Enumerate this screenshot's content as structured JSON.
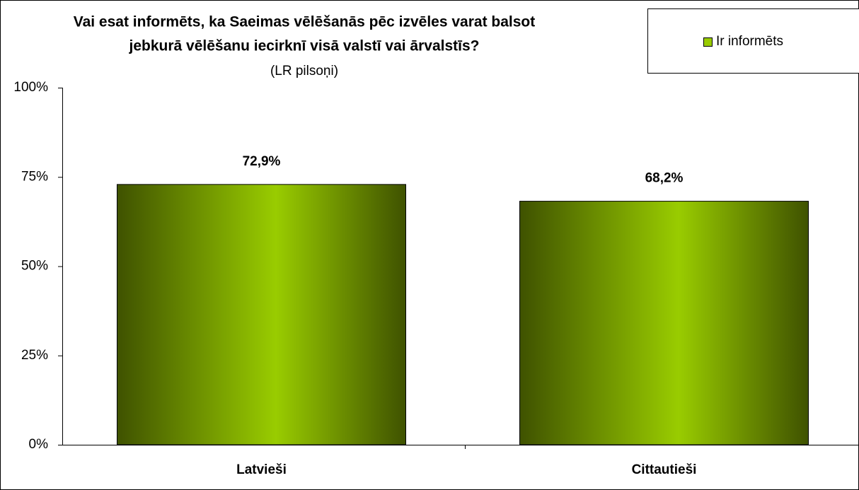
{
  "chart_data": {
    "type": "bar",
    "title": [
      "Vai esat informēts, ka Saeimas vēlēšanās pēc izvēles varat balsot",
      "jebkurā vēlēšanu iecirknī visā valstī vai ārvalstīs?"
    ],
    "subtitle": "(LR pilsoņi)",
    "categories": [
      "Latvieši",
      "Cittautieši"
    ],
    "series": [
      {
        "name": "Ir informēts",
        "color": "#99cc00",
        "values": [
          72.9,
          68.2
        ],
        "value_labels": [
          "72,9%",
          "68,2%"
        ]
      }
    ],
    "ylim": [
      0,
      100
    ],
    "yticks": [
      {
        "value": 0,
        "label": "0%"
      },
      {
        "value": 25,
        "label": "25%"
      },
      {
        "value": 50,
        "label": "50%"
      },
      {
        "value": 75,
        "label": "75%"
      },
      {
        "value": 100,
        "label": "100%"
      }
    ],
    "grid": false,
    "legend": "top-right"
  }
}
